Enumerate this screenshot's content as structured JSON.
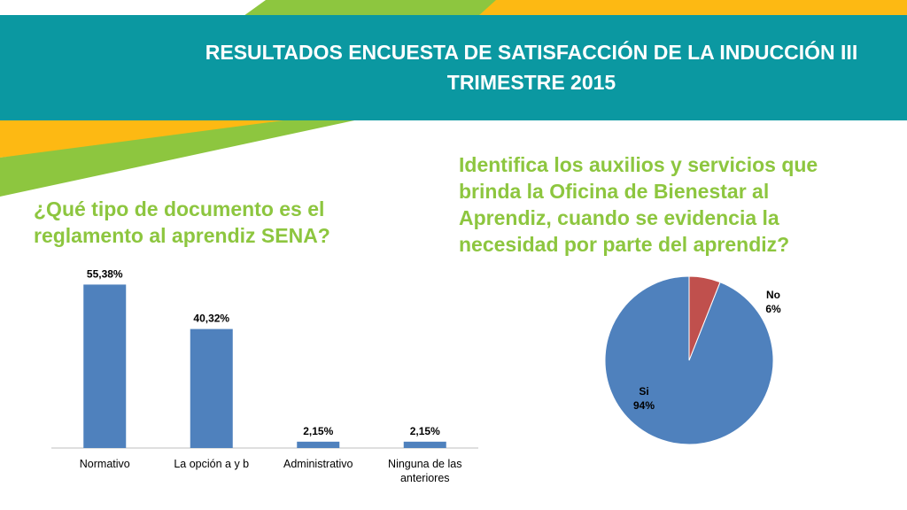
{
  "header": {
    "title_line1": "RESULTADOS ENCUESTA DE SATISFACCIÓN DE LA INDUCCIÓN III",
    "title_line2": "TRIMESTRE 2015"
  },
  "colors": {
    "teal": "#0B98A1",
    "green": "#8DC63F",
    "yellow": "#FDB913",
    "bar": "#4F81BD",
    "pie_si": "#4F81BD",
    "pie_no": "#C0504D"
  },
  "chart_data": [
    {
      "type": "bar",
      "title": "¿Qué tipo de documento es el reglamento al aprendiz SENA?",
      "categories": [
        [
          "Normativo"
        ],
        [
          "La opción a y b"
        ],
        [
          "Administrativo"
        ],
        [
          "Ninguna de las",
          "anteriores"
        ]
      ],
      "values": [
        55.38,
        40.32,
        2.15,
        2.15
      ],
      "data_labels": [
        "55,38%",
        "40,32%",
        "2,15%",
        "2,15%"
      ],
      "ylim": [
        0,
        60
      ],
      "grid": false,
      "legend": "none"
    },
    {
      "type": "pie",
      "title": "Identifica los auxilios y servicios que brinda la Oficina de Bienestar al Aprendiz, cuando se evidencia la necesidad por parte del aprendiz?",
      "labels": [
        "Si",
        "No"
      ],
      "values": [
        94,
        6
      ],
      "data_labels": [
        "94%",
        "6%"
      ],
      "legend": "none"
    }
  ]
}
